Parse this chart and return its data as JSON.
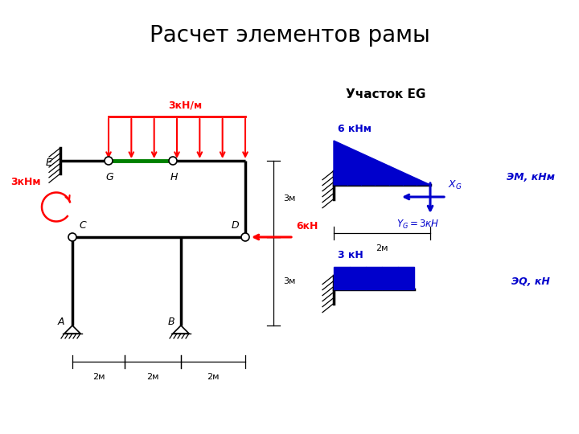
{
  "title": "Расчет элементов рамы",
  "title_fontsize": 20,
  "frame_color": "black",
  "red_color": "#ff0000",
  "green_color": "#008000",
  "blue_color": "#0000cc",
  "bg_color": "#ffffff",
  "uczastok_label": "Участок EG",
  "em_label": "ЭМ, кНм",
  "eq_label": "ЭQ, кН",
  "label_3knm": "3кНм",
  "label_3kn_m": "3кН/м",
  "label_6kn": "6кН",
  "label_6knm": "6 кНм",
  "label_3kn": "3 кН",
  "label_2m": "2м",
  "label_3m": "3м"
}
